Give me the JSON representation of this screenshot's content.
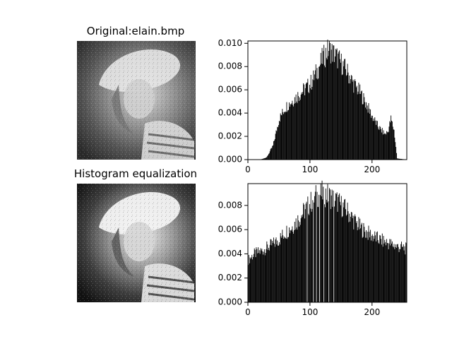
{
  "figure": {
    "background": "#ffffff",
    "bar_color": "#000000"
  },
  "panels": {
    "original_title": "Original:elain.bmp",
    "equalized_title": "Histogram equalization"
  },
  "images": {
    "original": {
      "description_hidden": "",
      "tone": "normal-contrast grayscale portrait"
    },
    "equalized": {
      "tone": "high-contrast grayscale portrait"
    }
  },
  "chart_data": [
    {
      "type": "bar",
      "name": "original-histogram",
      "xlim": [
        0,
        256
      ],
      "ylim": [
        0,
        0.0102
      ],
      "xticks": [
        0,
        100,
        200
      ],
      "yticks": [
        0.0,
        0.002,
        0.004,
        0.006,
        0.008,
        0.01
      ],
      "ytick_labels": [
        "0.000",
        "0.002",
        "0.004",
        "0.006",
        "0.008",
        "0.010"
      ],
      "bins": {
        "start": 0,
        "step": 1,
        "anchors": [
          [
            0,
            0
          ],
          [
            20,
            1e-05
          ],
          [
            30,
            0.0002
          ],
          [
            40,
            0.0012
          ],
          [
            50,
            0.0035
          ],
          [
            60,
            0.0045
          ],
          [
            70,
            0.005
          ],
          [
            80,
            0.0055
          ],
          [
            90,
            0.006
          ],
          [
            100,
            0.0065
          ],
          [
            110,
            0.0075
          ],
          [
            120,
            0.0087
          ],
          [
            130,
            0.0095
          ],
          [
            140,
            0.009
          ],
          [
            150,
            0.0083
          ],
          [
            160,
            0.0075
          ],
          [
            170,
            0.0065
          ],
          [
            180,
            0.0058
          ],
          [
            190,
            0.0048
          ],
          [
            200,
            0.0037
          ],
          [
            210,
            0.0028
          ],
          [
            220,
            0.0022
          ],
          [
            225,
            0.0024
          ],
          [
            230,
            0.0035
          ],
          [
            235,
            0.0025
          ],
          [
            240,
            0.0001
          ],
          [
            255,
            0
          ]
        ]
      }
    },
    {
      "type": "bar",
      "name": "equalized-histogram",
      "xlim": [
        0,
        256
      ],
      "ylim": [
        0,
        0.0098
      ],
      "xticks": [
        0,
        100,
        200
      ],
      "yticks": [
        0.0,
        0.002,
        0.004,
        0.006,
        0.008
      ],
      "ytick_labels": [
        "0.000",
        "0.002",
        "0.004",
        "0.006",
        "0.008"
      ],
      "bins": {
        "start": 0,
        "step": 1,
        "anchors": [
          [
            0,
            0.0035
          ],
          [
            10,
            0.004
          ],
          [
            20,
            0.0042
          ],
          [
            30,
            0.0045
          ],
          [
            40,
            0.0048
          ],
          [
            50,
            0.0052
          ],
          [
            60,
            0.0058
          ],
          [
            70,
            0.0062
          ],
          [
            80,
            0.0068
          ],
          [
            90,
            0.0075
          ],
          [
            100,
            0.0082
          ],
          [
            110,
            0.0088
          ],
          [
            120,
            0.009
          ],
          [
            130,
            0.0088
          ],
          [
            140,
            0.0085
          ],
          [
            150,
            0.008
          ],
          [
            160,
            0.0075
          ],
          [
            170,
            0.0068
          ],
          [
            180,
            0.0062
          ],
          [
            190,
            0.0058
          ],
          [
            200,
            0.0055
          ],
          [
            210,
            0.0052
          ],
          [
            220,
            0.005
          ],
          [
            230,
            0.0048
          ],
          [
            240,
            0.0046
          ],
          [
            250,
            0.0045
          ],
          [
            255,
            0.0044
          ]
        ],
        "gaps": [
          95,
          105,
          110,
          115,
          122,
          130,
          138
        ]
      }
    }
  ]
}
